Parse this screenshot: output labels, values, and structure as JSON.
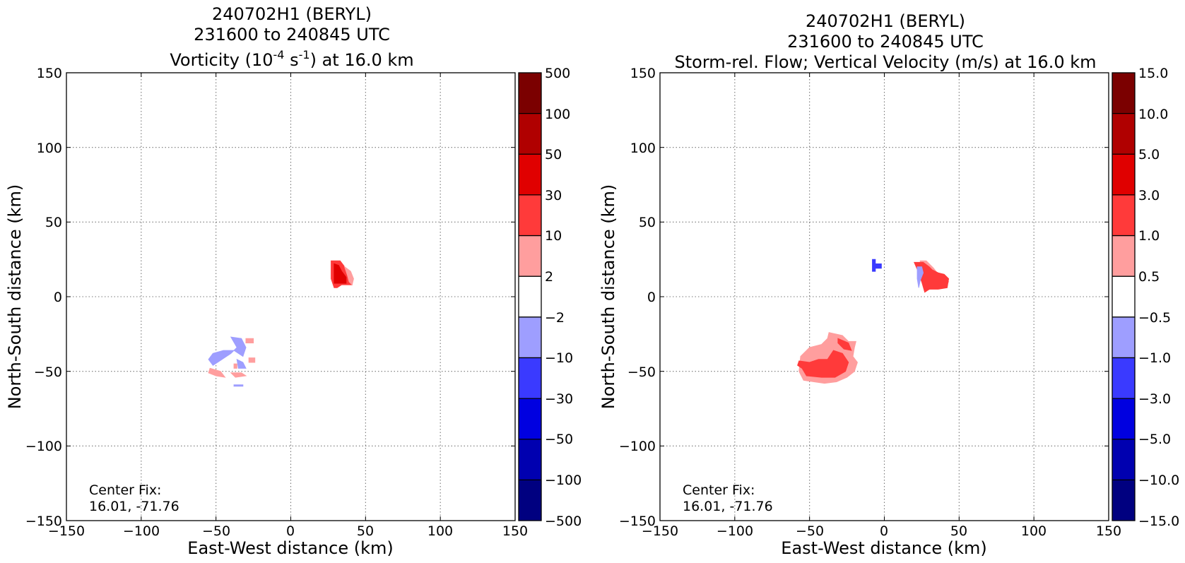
{
  "chart_data": [
    {
      "type": "heatmap",
      "title_line1": "240702H1 (BERYL)",
      "title_line2": "231600 to 240845 UTC",
      "title_line3_prefix": "Vorticity (10",
      "title_line3_sup1": "-4",
      "title_line3_mid": " s",
      "title_line3_sup2": "-1",
      "title_line3_suffix": ") at 16.0 km",
      "xlabel": "East-West distance (km)",
      "ylabel": "North-South distance (km)",
      "xlim": [
        -150,
        150
      ],
      "ylim": [
        -150,
        150
      ],
      "xticks": [
        "−150",
        "−100",
        "−50",
        "0",
        "50",
        "100",
        "150"
      ],
      "yticks": [
        "150",
        "100",
        "50",
        "0",
        "−50",
        "−100",
        "−150"
      ],
      "grid": true,
      "annotation_line1": "Center Fix:",
      "annotation_line2": "16.01, -71.76",
      "colorbar": {
        "labels": [
          "500",
          "100",
          "50",
          "30",
          "10",
          "2",
          "−2",
          "−10",
          "−30",
          "−50",
          "−100",
          "−500"
        ],
        "colors": [
          "#7b0000",
          "#b00000",
          "#e00000",
          "#ff3a3a",
          "#ff9e9e",
          "#ffffff",
          "#9e9eff",
          "#3a3aff",
          "#0000e0",
          "#0000b0",
          "#000080"
        ]
      },
      "regions": [
        {
          "level": "10 to 30",
          "color": "#ff3a3a",
          "points": [
            [
              27,
              24
            ],
            [
              33,
              24
            ],
            [
              36,
              20
            ],
            [
              39,
              16
            ],
            [
              41,
              12
            ],
            [
              41,
              8
            ],
            [
              34,
              8
            ],
            [
              31,
              6
            ],
            [
              29,
              6
            ],
            [
              27,
              12
            ]
          ]
        },
        {
          "level": "30 to 50",
          "color": "#e00000",
          "points": [
            [
              29,
              22
            ],
            [
              32,
              21
            ],
            [
              34,
              17
            ],
            [
              37,
              13
            ],
            [
              37,
              9
            ],
            [
              32,
              9
            ],
            [
              29,
              9
            ]
          ]
        },
        {
          "level": "2 to 10",
          "color": "#ff9e9e",
          "points": [
            [
              36,
              20
            ],
            [
              40,
              17
            ],
            [
              42,
              12
            ],
            [
              41,
              8
            ],
            [
              39,
              10
            ],
            [
              38,
              14
            ]
          ]
        },
        {
          "level": "-10 to -2",
          "color": "#9e9eff",
          "points": [
            [
              -40,
              -27
            ],
            [
              -33,
              -28
            ],
            [
              -30,
              -34
            ],
            [
              -32,
              -40
            ],
            [
              -38,
              -36
            ],
            [
              -45,
              -36
            ],
            [
              -52,
              -38
            ],
            [
              -55,
              -42
            ],
            [
              -52,
              -46
            ],
            [
              -46,
              -42
            ],
            [
              -40,
              -38
            ],
            [
              -36,
              -34
            ]
          ]
        },
        {
          "level": "-10 to -2",
          "color": "#9e9eff",
          "points": [
            [
              -36,
              -42
            ],
            [
              -32,
              -44
            ],
            [
              -30,
              -48
            ],
            [
              -35,
              -48
            ]
          ]
        },
        {
          "level": "-10 to -2",
          "color": "#9e9eff",
          "points": [
            [
              -38,
              -59
            ],
            [
              -32,
              -59
            ],
            [
              -32,
              -60
            ],
            [
              -38,
              -60
            ]
          ]
        },
        {
          "level": "2 to 10",
          "color": "#ff9e9e",
          "points": [
            [
              -30,
              -28
            ],
            [
              -25,
              -28
            ],
            [
              -25,
              -31
            ],
            [
              -30,
              -31
            ]
          ]
        },
        {
          "level": "2 to 10",
          "color": "#ff9e9e",
          "points": [
            [
              -28,
              -41
            ],
            [
              -24,
              -41
            ],
            [
              -24,
              -44
            ],
            [
              -28,
              -44
            ]
          ]
        },
        {
          "level": "2 to 10",
          "color": "#ff9e9e",
          "points": [
            [
              -54,
              -48
            ],
            [
              -47,
              -50
            ],
            [
              -44,
              -54
            ],
            [
              -50,
              -53
            ],
            [
              -55,
              -51
            ]
          ]
        },
        {
          "level": "2 to 10",
          "color": "#ff9e9e",
          "points": [
            [
              -40,
              -51
            ],
            [
              -33,
              -51
            ],
            [
              -30,
              -53
            ],
            [
              -37,
              -54
            ]
          ]
        },
        {
          "level": "2 to 10",
          "color": "#ff9e9e",
          "points": [
            [
              -38,
              -45
            ],
            [
              -36,
              -45
            ],
            [
              -36,
              -48
            ],
            [
              -38,
              -48
            ]
          ]
        }
      ]
    },
    {
      "type": "heatmap",
      "title_line1": "240702H1 (BERYL)",
      "title_line2": "231600 to 240845 UTC",
      "title_line3": "Storm-rel. Flow; Vertical Velocity (m/s) at 16.0 km",
      "xlabel": "East-West distance (km)",
      "ylabel": "North-South distance (km)",
      "xlim": [
        -150,
        150
      ],
      "ylim": [
        -150,
        150
      ],
      "xticks": [
        "−150",
        "−100",
        "−50",
        "0",
        "50",
        "100",
        "150"
      ],
      "yticks": [
        "150",
        "100",
        "50",
        "0",
        "−50",
        "−100",
        "−150"
      ],
      "grid": true,
      "annotation_line1": "Center Fix:",
      "annotation_line2": "16.01, -71.76",
      "colorbar": {
        "labels": [
          "15.0",
          "10.0",
          "5.0",
          "3.0",
          "1.0",
          "0.5",
          "−0.5",
          "−1.0",
          "−3.0",
          "−5.0",
          "−10.0",
          "−15.0"
        ],
        "colors": [
          "#7b0000",
          "#b00000",
          "#e00000",
          "#ff3a3a",
          "#ff9e9e",
          "#ffffff",
          "#9e9eff",
          "#3a3aff",
          "#0000e0",
          "#0000b0",
          "#000080"
        ]
      },
      "regions": [
        {
          "level": "0.5 to 1.0",
          "color": "#ff9e9e",
          "points": [
            [
              -37,
              -24
            ],
            [
              -28,
              -26
            ],
            [
              -24,
              -30
            ],
            [
              -19,
              -30
            ],
            [
              -20,
              -34
            ],
            [
              -21,
              -40
            ],
            [
              -18,
              -44
            ],
            [
              -20,
              -50
            ],
            [
              -25,
              -54
            ],
            [
              -32,
              -57
            ],
            [
              -40,
              -58
            ],
            [
              -47,
              -57
            ],
            [
              -54,
              -56
            ],
            [
              -57,
              -50
            ],
            [
              -56,
              -40
            ],
            [
              -50,
              -34
            ],
            [
              -42,
              -32
            ],
            [
              -38,
              -28
            ]
          ]
        },
        {
          "level": "1.0 to 3.0",
          "color": "#ff3a3a",
          "points": [
            [
              -34,
              -36
            ],
            [
              -28,
              -38
            ],
            [
              -24,
              -44
            ],
            [
              -26,
              -50
            ],
            [
              -33,
              -54
            ],
            [
              -42,
              -54
            ],
            [
              -52,
              -53
            ],
            [
              -55,
              -48
            ],
            [
              -58,
              -46
            ],
            [
              -57,
              -43
            ],
            [
              -50,
              -44
            ],
            [
              -44,
              -42
            ],
            [
              -38,
              -42
            ]
          ]
        },
        {
          "level": "1.0 to 3.0",
          "color": "#ff3a3a",
          "points": [
            [
              -31,
              -28
            ],
            [
              -24,
              -31
            ],
            [
              -22,
              -36
            ],
            [
              -27,
              -35
            ],
            [
              -31,
              -31
            ]
          ]
        },
        {
          "level": "0.5 to 1.0",
          "color": "#ff9e9e",
          "points": [
            [
              24,
              24
            ],
            [
              28,
              24
            ],
            [
              33,
              19
            ],
            [
              36,
              15
            ],
            [
              41,
              13
            ],
            [
              43,
              10
            ],
            [
              40,
              6
            ],
            [
              33,
              6
            ],
            [
              28,
              4
            ],
            [
              24,
              12
            ]
          ]
        },
        {
          "level": "1.0 to 3.0",
          "color": "#ff3a3a",
          "points": [
            [
              20,
              23
            ],
            [
              26,
              23
            ],
            [
              30,
              20
            ],
            [
              32,
              18
            ],
            [
              36,
              16
            ],
            [
              40,
              15
            ],
            [
              43,
              12
            ],
            [
              42,
              6
            ],
            [
              36,
              5
            ],
            [
              30,
              5
            ],
            [
              27,
              3
            ],
            [
              25,
              10
            ],
            [
              23,
              16
            ]
          ]
        },
        {
          "level": "-1.0 to -0.5",
          "color": "#9e9eff",
          "points": [
            [
              22,
              20
            ],
            [
              25,
              20
            ],
            [
              26,
              16
            ],
            [
              24,
              11
            ],
            [
              23,
              6
            ],
            [
              22,
              12
            ]
          ]
        },
        {
          "level": "-3.0 to -1.0",
          "color": "#3a3aff",
          "points": [
            [
              -8,
              25
            ],
            [
              -6,
              25
            ],
            [
              -6,
              22
            ],
            [
              -2,
              22
            ],
            [
              -2,
              19
            ],
            [
              -6,
              19
            ],
            [
              -6,
              17
            ],
            [
              -8,
              17
            ]
          ]
        }
      ]
    }
  ]
}
